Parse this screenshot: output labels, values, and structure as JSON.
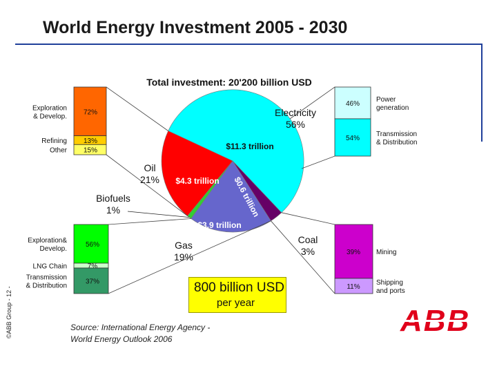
{
  "header": {
    "title": "World Energy Investment 2005 - 2030"
  },
  "footer": {
    "source_line1": "Source: International Energy Agency -",
    "source_line2": "World Energy Outlook 2006",
    "side_note": "©ABB Group - 12 -",
    "logo": "ABB"
  },
  "callout": {
    "amount": "800 billion USD",
    "period": "per year"
  },
  "chart_data": {
    "type": "pie",
    "title": "Total investment: 20'200 billion USD",
    "total_billion_usd": 20200,
    "slices": [
      {
        "name": "Electricity",
        "percent": "56%",
        "share": 56,
        "value_label": "$11.3 trillion",
        "value_trillion": 11.3,
        "color": "#00ffff"
      },
      {
        "name": "Coal",
        "percent": "3%",
        "share": 3,
        "value_label": "$0.6 trillion",
        "value_trillion": 0.6,
        "color": "#660066"
      },
      {
        "name": "Gas",
        "percent": "19%",
        "share": 19,
        "value_label": "$3.9 trillion",
        "value_trillion": 3.9,
        "color": "#6666cc"
      },
      {
        "name": "Biofuels",
        "percent": "1%",
        "share": 1,
        "value_label": "",
        "value_trillion": null,
        "color": "#33cc33"
      },
      {
        "name": "Oil",
        "percent": "21%",
        "share": 21,
        "value_label": "$4.3 trillion",
        "value_trillion": 4.3,
        "color": "#ff0000"
      }
    ],
    "breakdowns": [
      {
        "parent": "Oil",
        "segments": [
          {
            "label": "Exploration & Develop.",
            "value": "72%",
            "share": 72,
            "color": "#ff6600"
          },
          {
            "label": "Refining",
            "value": "13%",
            "share": 13,
            "color": "#ffcc00"
          },
          {
            "label": "Other",
            "value": "15%",
            "share": 15,
            "color": "#ffff66"
          }
        ]
      },
      {
        "parent": "Electricity",
        "segments": [
          {
            "label": "Power generation",
            "value": "46%",
            "share": 46,
            "color": "#ccffff"
          },
          {
            "label": "Transmission & Distribution",
            "value": "54%",
            "share": 54,
            "color": "#00ffff"
          }
        ]
      },
      {
        "parent": "Gas",
        "segments": [
          {
            "label": "Exploration& Develop.",
            "value": "56%",
            "share": 56,
            "color": "#00ff00"
          },
          {
            "label": "LNG Chain",
            "value": "7%",
            "share": 7,
            "color": "#ccffcc"
          },
          {
            "label": "Transmission & Distribution",
            "value": "37%",
            "share": 37,
            "color": "#339966"
          }
        ]
      },
      {
        "parent": "Coal",
        "segments": [
          {
            "label": "Mining",
            "value": "39%",
            "share": 39,
            "color": "#cc00cc"
          },
          {
            "label": "Shipping and ports",
            "value": "11%",
            "share": 11,
            "color": "#cc99ff"
          }
        ]
      }
    ]
  }
}
